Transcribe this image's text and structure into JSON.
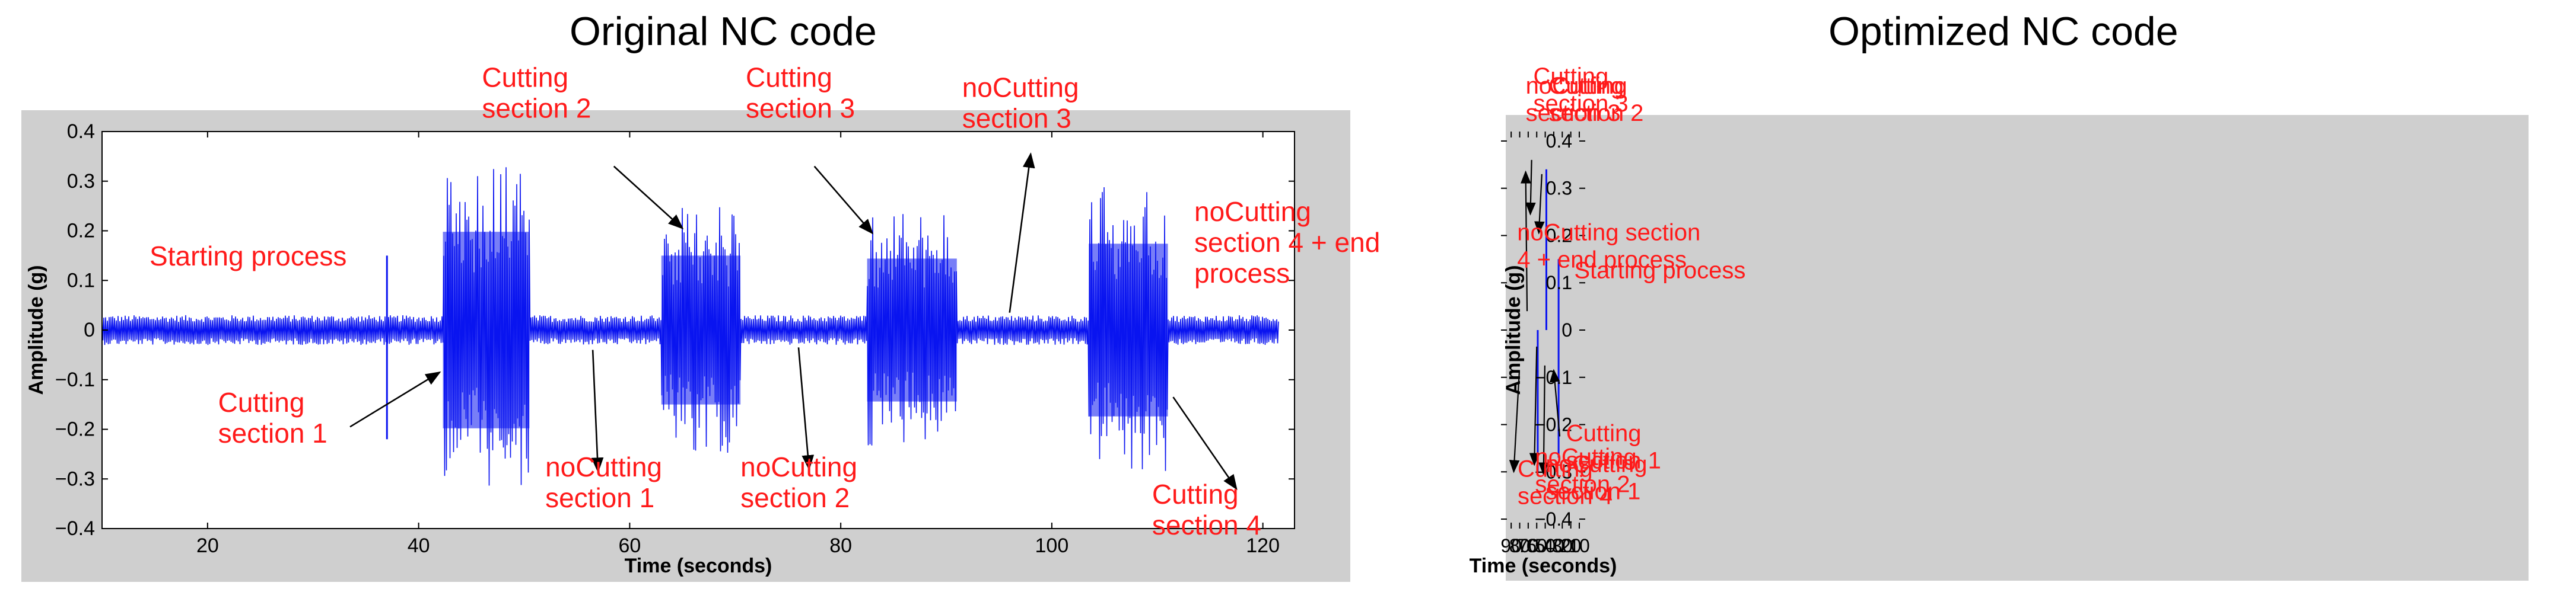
{
  "colors": {
    "signal": "#0a14f0",
    "annotation": "#ff1a1a",
    "frame": "#cfcfcf",
    "plot_bg": "#ffffff",
    "axis": "#000000"
  },
  "chart_data": [
    {
      "type": "line",
      "title": "Original NC code",
      "xlabel": "Time (seconds)",
      "ylabel": "Amplitude (g)",
      "xlim": [
        10,
        123
      ],
      "ylim": [
        -0.4,
        0.4
      ],
      "xticks": [
        20,
        40,
        60,
        80,
        100,
        120
      ],
      "yticks": [
        -0.4,
        -0.3,
        -0.2,
        -0.1,
        0,
        0.1,
        0.2,
        0.3,
        0.4
      ],
      "ytick_labels": [
        "−0.4",
        "−0.3",
        "−0.2",
        "−0.1",
        "0",
        "0.1",
        "0.2",
        "0.3",
        "0.4"
      ],
      "grid": false,
      "series": [
        {
          "signal_range": [
            10,
            121.5
          ],
          "baseline_amplitude": 0.03,
          "cutting_bursts": [
            {
              "start": 42.3,
              "end": 50.5,
              "peak": 0.33
            },
            {
              "start": 63.0,
              "end": 70.5,
              "peak": 0.25
            },
            {
              "start": 82.5,
              "end": 91.0,
              "peak": 0.24
            },
            {
              "start": 103.5,
              "end": 111.0,
              "peak": 0.29
            }
          ],
          "spikes": [
            {
              "x": 37.0,
              "y": 0.15
            },
            {
              "x": 37.0,
              "y": -0.22
            }
          ]
        }
      ],
      "annotations": [
        {
          "lines": [
            "Starting process"
          ],
          "x": 14.5,
          "y": 0.13,
          "arrow": null
        },
        {
          "lines": [
            "Cutting",
            "section 1"
          ],
          "x": 21,
          "y": -0.165,
          "arrow": {
            "from": [
              33.5,
              -0.195
            ],
            "to": [
              42.0,
              -0.085
            ]
          }
        },
        {
          "lines": [
            "Cutting",
            "section 2"
          ],
          "x": 46,
          "y": 0.49,
          "arrow": {
            "from": [
              58.5,
              0.33
            ],
            "to": [
              65.0,
              0.205
            ]
          }
        },
        {
          "lines": [
            "Cutting",
            "section 3"
          ],
          "x": 71,
          "y": 0.49,
          "arrow": {
            "from": [
              77.5,
              0.33
            ],
            "to": [
              83.0,
              0.195
            ]
          }
        },
        {
          "lines": [
            "noCutting",
            "section 3"
          ],
          "x": 91.5,
          "y": 0.47,
          "arrow": {
            "from": [
              96.0,
              0.035
            ],
            "to": [
              98.0,
              0.355
            ]
          }
        },
        {
          "lines": [
            "noCutting",
            "section 4 + end",
            "process"
          ],
          "x": 113.5,
          "y": 0.22,
          "arrow": null
        },
        {
          "lines": [
            "noCutting",
            "section 1"
          ],
          "x": 52,
          "y": -0.295,
          "arrow": {
            "from": [
              56.5,
              -0.04
            ],
            "to": [
              57.0,
              -0.285
            ]
          }
        },
        {
          "lines": [
            "noCutting",
            "section 2"
          ],
          "x": 70.5,
          "y": -0.295,
          "arrow": {
            "from": [
              76.0,
              -0.035
            ],
            "to": [
              77.0,
              -0.28
            ]
          }
        },
        {
          "lines": [
            "Cutting",
            "section 4"
          ],
          "x": 109.5,
          "y": -0.35,
          "arrow": {
            "from": [
              111.5,
              -0.135
            ],
            "to": [
              117.5,
              -0.32
            ]
          }
        }
      ]
    },
    {
      "type": "line",
      "title": "Optimized NC code",
      "xlabel": "Time (seconds)",
      "ylabel": "Amplitude (g)",
      "xlim": [
        10,
        95
      ],
      "ylim": [
        -0.42,
        0.42
      ],
      "xticks": [
        10,
        20,
        30,
        40,
        50,
        60,
        70,
        80,
        90
      ],
      "yticks": [
        -0.4,
        -0.3,
        -0.2,
        -0.1,
        0,
        0.1,
        0.2,
        0.3,
        0.4
      ],
      "ytick_labels": [
        "−0.4",
        "−0.3",
        "−0.2",
        "−0.1",
        "0",
        "0.1",
        "0.2",
        "0.3",
        "0.4"
      ],
      "grid": false,
      "series": [
        {
          "signal_range": [
            10,
            88
          ],
          "baseline_amplitude": 0.03,
          "cutting_bursts": [
            {
              "start": 40.0,
              "end": 48.5,
              "peak": 0.36
            },
            {
              "start": 50.5,
              "end": 57.5,
              "peak": 0.22
            },
            {
              "start": 61.0,
              "end": 69.8,
              "peak": 0.27
            },
            {
              "start": 72.5,
              "end": 80.5,
              "peak": 0.28
            }
          ],
          "spikes": [
            {
              "x": 34.3,
              "y": 0.15
            },
            {
              "x": 34.3,
              "y": -0.27
            },
            {
              "x": 48.7,
              "y": 0.34
            },
            {
              "x": 58.8,
              "y": -0.3
            }
          ]
        }
      ],
      "annotations": [
        {
          "lines": [
            "Starting process"
          ],
          "x": 16,
          "y": 0.11,
          "arrow": null
        },
        {
          "lines": [
            "Cutting",
            "section 1"
          ],
          "x": 25.5,
          "y": -0.235,
          "arrow": {
            "from": [
              33.0,
              -0.225
            ],
            "to": [
              40.0,
              -0.085
            ]
          }
        },
        {
          "lines": [
            "Cutting",
            "section 2"
          ],
          "x": 46,
          "y": 0.5,
          "arrow": {
            "from": [
              54.0,
              0.33
            ],
            "to": [
              57.5,
              0.205
            ]
          }
        },
        {
          "lines": [
            "Cutting",
            "section 3"
          ],
          "x": 64,
          "y": 0.52,
          "arrow": {
            "from": [
              66.0,
              0.36
            ],
            "to": [
              67.5,
              0.245
            ]
          }
        },
        {
          "lines": [
            "noCutting",
            "section 3"
          ],
          "x": 73,
          "y": 0.5,
          "arrow": {
            "from": [
              71.3,
              0.04
            ],
            "to": [
              73.0,
              0.335
            ]
          }
        },
        {
          "lines": [
            "noCutting section",
            "4 + end process"
          ],
          "x": 83,
          "y": 0.19,
          "arrow": null
        },
        {
          "lines": [
            "noCutting",
            "section 1"
          ],
          "x": 49.5,
          "y": -0.3,
          "arrow": {
            "from": [
              50.5,
              -0.075
            ],
            "to": [
              52.0,
              -0.305
            ]
          }
        },
        {
          "lines": [
            "noCutting",
            "section 2"
          ],
          "x": 62,
          "y": -0.285,
          "arrow": {
            "from": [
              60.0,
              -0.035
            ],
            "to": [
              62.8,
              -0.285
            ]
          }
        },
        {
          "lines": [
            "Cutting",
            "section 4"
          ],
          "x": 82.5,
          "y": -0.31,
          "arrow": {
            "from": [
              80.5,
              -0.09
            ],
            "to": [
              87.0,
              -0.3
            ]
          }
        }
      ]
    }
  ]
}
